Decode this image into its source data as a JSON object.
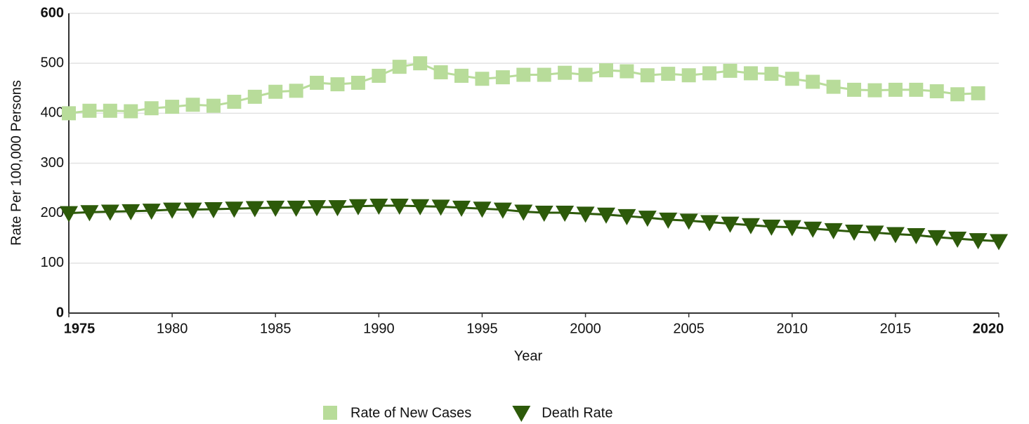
{
  "chart_data": {
    "type": "line",
    "xlabel": "Year",
    "ylabel": "Rate Per 100,000 Persons",
    "x": [
      1975,
      1976,
      1977,
      1978,
      1979,
      1980,
      1981,
      1982,
      1983,
      1984,
      1985,
      1986,
      1987,
      1988,
      1989,
      1990,
      1991,
      1992,
      1993,
      1994,
      1995,
      1996,
      1997,
      1998,
      1999,
      2000,
      2001,
      2002,
      2003,
      2004,
      2005,
      2006,
      2007,
      2008,
      2009,
      2010,
      2011,
      2012,
      2013,
      2014,
      2015,
      2016,
      2017,
      2018,
      2019,
      2020
    ],
    "series": [
      {
        "name": "Rate of New Cases",
        "color": "#b8dc9a",
        "marker": "square",
        "values": [
          400,
          405,
          405,
          404,
          410,
          413,
          417,
          415,
          423,
          433,
          443,
          445,
          461,
          458,
          461,
          475,
          493,
          500,
          482,
          475,
          469,
          472,
          477,
          477,
          481,
          477,
          486,
          484,
          476,
          479,
          476,
          480,
          485,
          480,
          479,
          469,
          463,
          453,
          447,
          446,
          447,
          447,
          444,
          438,
          440,
          null
        ]
      },
      {
        "name": "Death Rate",
        "color": "#2d5a0a",
        "marker": "triangle",
        "values": [
          200,
          202,
          203,
          204,
          205,
          207,
          207,
          208,
          209,
          210,
          211,
          211,
          212,
          212,
          214,
          215,
          215,
          214,
          213,
          211,
          209,
          207,
          203,
          201,
          201,
          199,
          197,
          194,
          191,
          187,
          185,
          182,
          179,
          176,
          173,
          172,
          169,
          166,
          163,
          161,
          158,
          156,
          152,
          149,
          146,
          144
        ]
      }
    ],
    "xlim": [
      1975,
      2020
    ],
    "xticks": [
      1975,
      1980,
      1985,
      1990,
      1995,
      2000,
      2005,
      2010,
      2015,
      2020
    ],
    "ylim": [
      0,
      600
    ],
    "yticks": [
      0,
      100,
      200,
      300,
      400,
      500,
      600
    ],
    "grid": true,
    "legend": "bottom"
  }
}
